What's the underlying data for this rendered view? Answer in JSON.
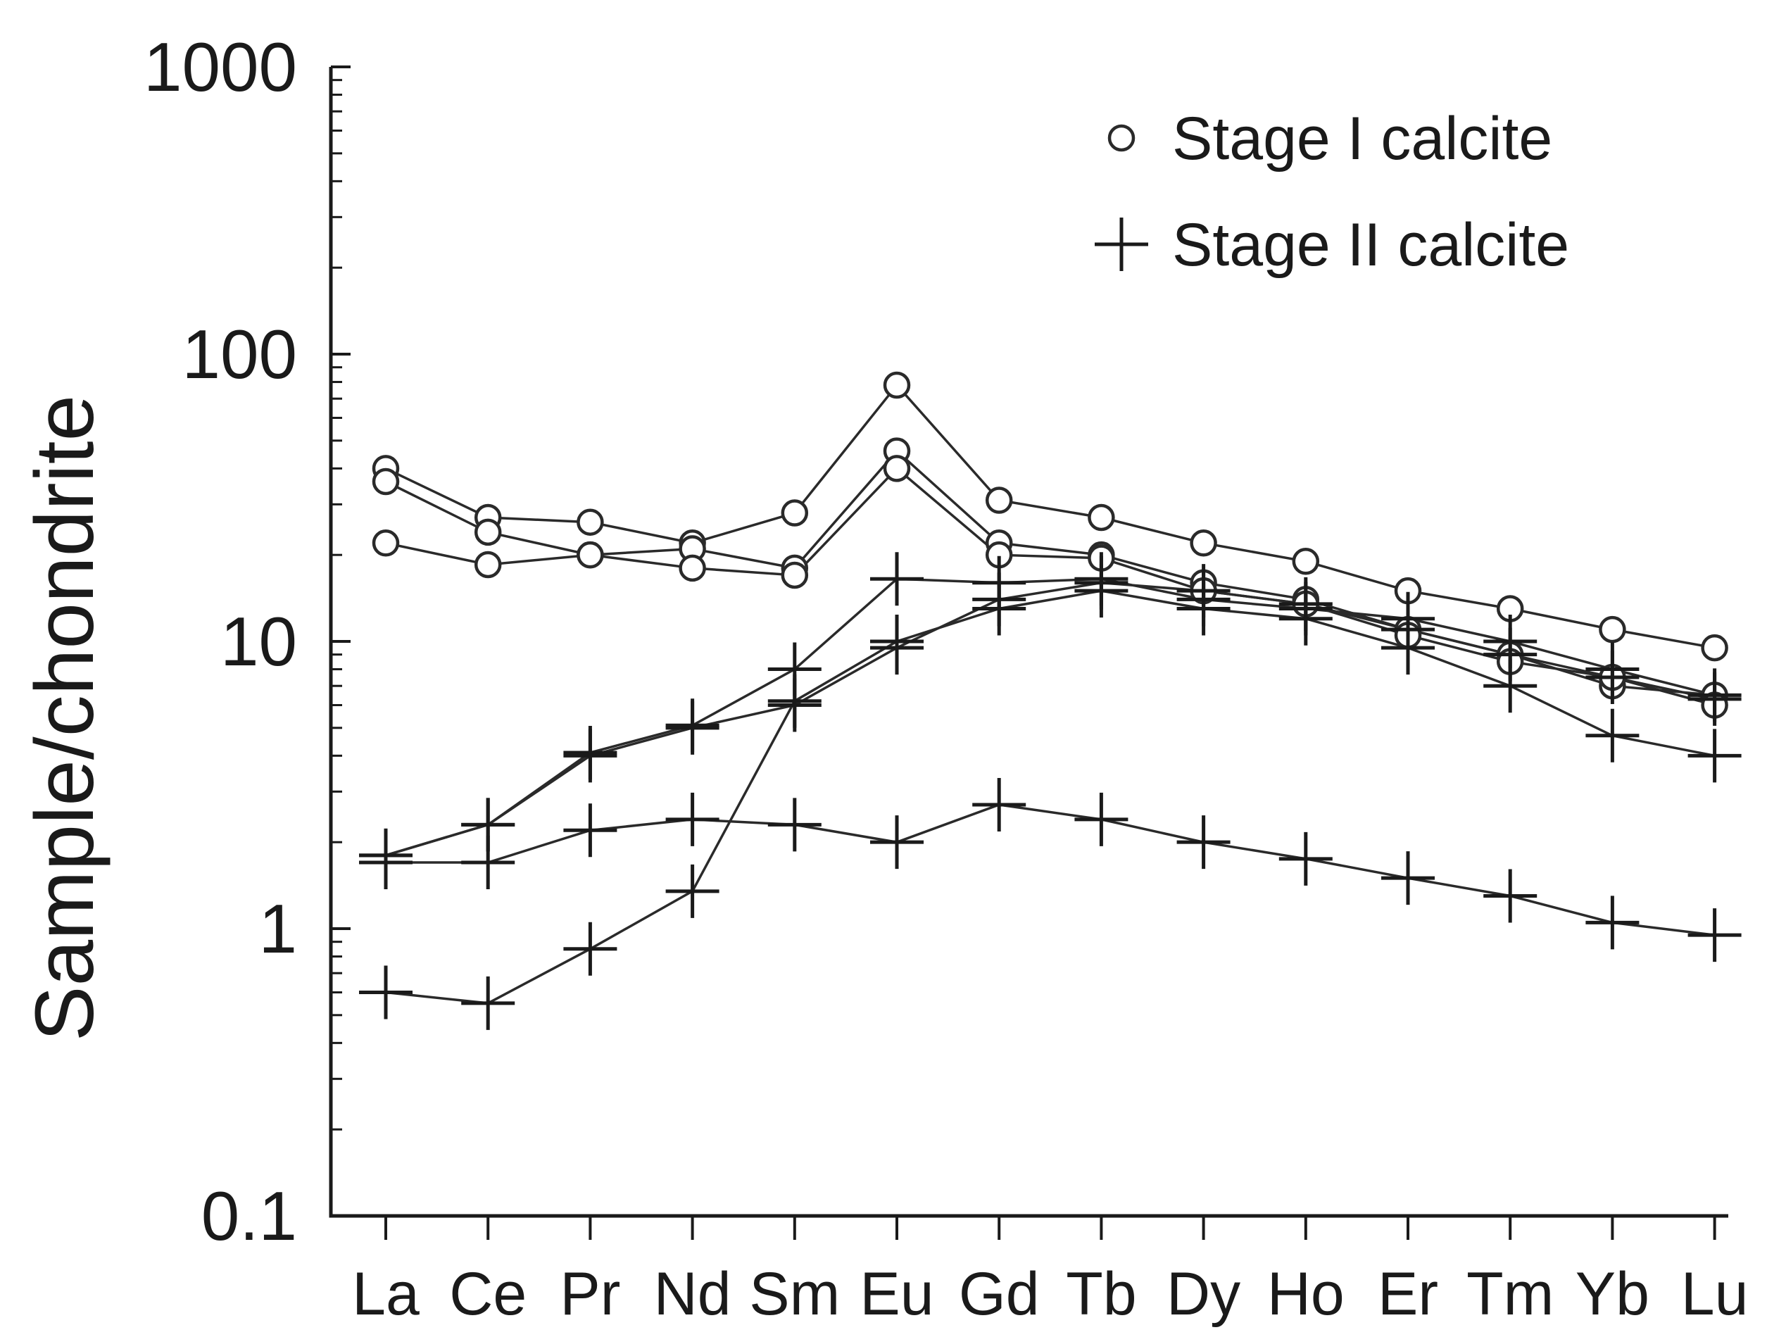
{
  "chart_data": {
    "type": "line",
    "y_scale": "log",
    "ylim": [
      0.1,
      1000
    ],
    "yticks": [
      "1000",
      "100",
      "10",
      "1",
      "0.1"
    ],
    "ylabel": "Sample/chondrite",
    "xlabel": "",
    "categories": [
      "La",
      "Ce",
      "Pr",
      "Nd",
      "Sm",
      "Eu",
      "Gd",
      "Tb",
      "Dy",
      "Ho",
      "Er",
      "Tm",
      "Yb",
      "Lu"
    ],
    "grid": false,
    "legend": {
      "placement": "top-right",
      "entries": [
        {
          "label": "Stage I calcite",
          "marker": "circle"
        },
        {
          "label": "Stage II calcite",
          "marker": "plus"
        }
      ]
    },
    "series": [
      {
        "group": "Stage I calcite",
        "marker": "circle",
        "values": [
          40,
          27,
          26,
          22,
          28,
          78,
          31,
          27,
          22,
          19,
          15,
          13,
          11,
          9.5
        ]
      },
      {
        "group": "Stage I calcite",
        "marker": "circle",
        "values": [
          36,
          24,
          20,
          21,
          18,
          46,
          22,
          20,
          16,
          14,
          11,
          9,
          7,
          6.5
        ]
      },
      {
        "group": "Stage I calcite",
        "marker": "circle",
        "values": [
          22,
          18.5,
          20,
          18,
          17,
          40,
          20,
          19.5,
          15,
          13.5,
          10.5,
          8.5,
          7.5,
          6
        ]
      },
      {
        "group": "Stage II calcite",
        "marker": "plus",
        "values": [
          1.8,
          2.3,
          4.1,
          5.1,
          8,
          16.5,
          16,
          16.5,
          14,
          13,
          12,
          10,
          8,
          6.5
        ]
      },
      {
        "group": "Stage II calcite",
        "marker": "plus",
        "values": [
          1.7,
          1.7,
          2.2,
          2.4,
          2.3,
          2.0,
          2.7,
          2.4,
          2.0,
          1.75,
          1.5,
          1.3,
          1.05,
          0.95
        ]
      },
      {
        "group": "Stage II calcite",
        "marker": "plus",
        "values": [
          0.6,
          0.55,
          0.85,
          1.35,
          6.2,
          10,
          13,
          15,
          13,
          12,
          9.5,
          7,
          4.7,
          4
        ]
      },
      {
        "group": "Stage II calcite",
        "marker": "plus",
        "values": [
          1.8,
          2.3,
          4.0,
          5.0,
          6.0,
          9.5,
          14,
          16,
          15,
          13.5,
          11,
          9,
          7.5,
          6.3
        ]
      }
    ]
  }
}
